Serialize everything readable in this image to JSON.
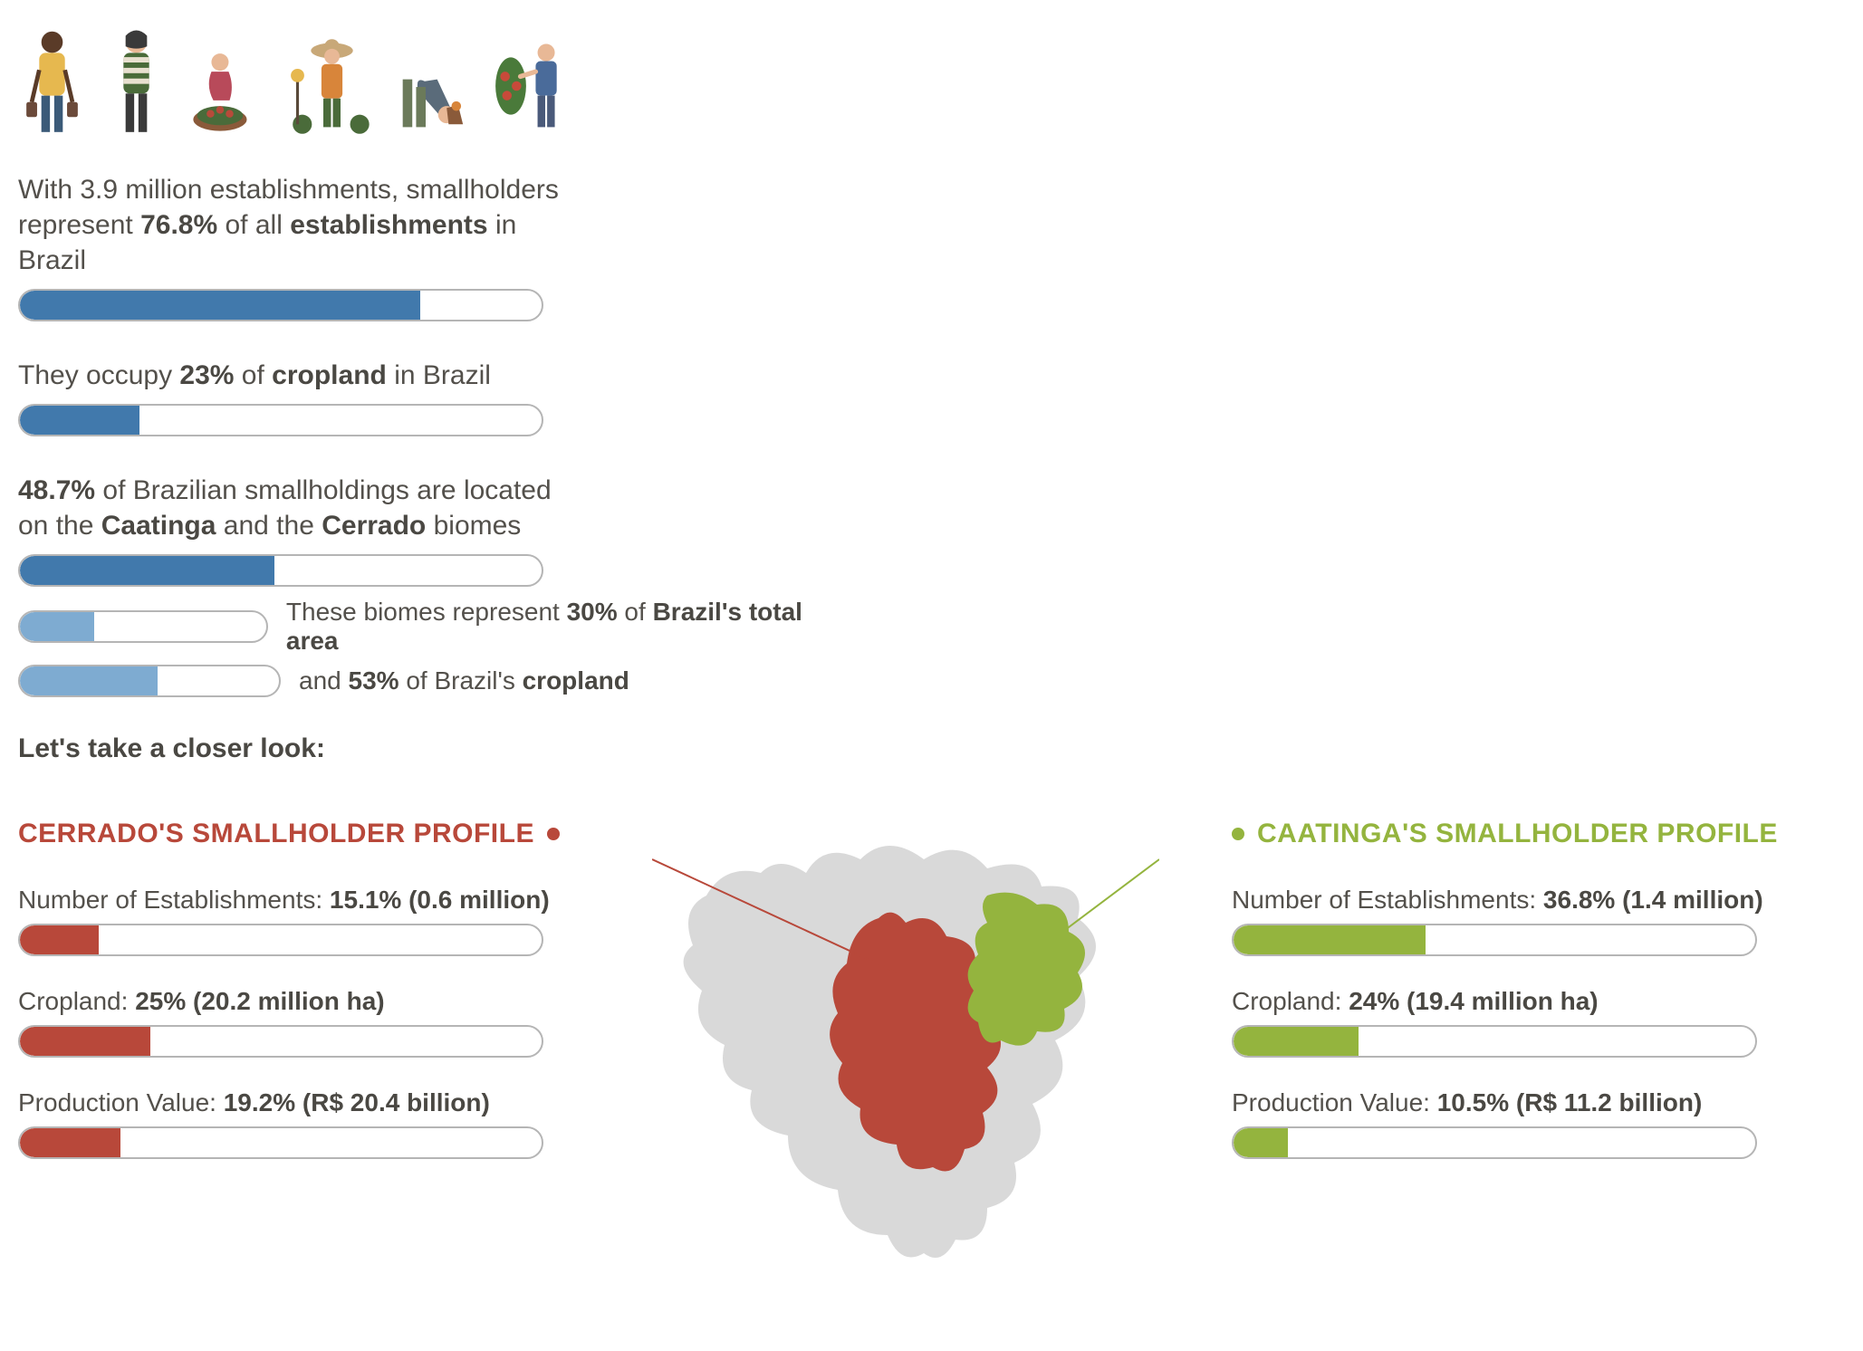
{
  "colors": {
    "blue_dark": "#4179ac",
    "blue_light": "#7eabd1",
    "bar_border": "#b5b5b5",
    "text": "#53504b",
    "text_bold": "#4a4843",
    "red": "#b8483a",
    "green": "#94b43e",
    "map_base": "#d9d9d9"
  },
  "stats": {
    "establishments": {
      "pre": "With 3.9 million establishments, smallholders",
      "line2_pre": "represent ",
      "pct_bold": "76.8%",
      "line2_mid": " of all ",
      "word_bold": "establishments",
      "line2_post": " in Brazil",
      "value": 76.8
    },
    "cropland": {
      "pre": "They occupy ",
      "pct_bold": "23%",
      "mid": " of ",
      "word_bold": "cropland",
      "post": " in Brazil",
      "value": 23
    },
    "biomes": {
      "pct_bold": "48.7%",
      "line1_post": " of Brazilian smallholdings are located",
      "line2_pre": "on the ",
      "b1": "Caatinga",
      "line2_mid": " and the ",
      "b2": "Cerrado",
      "line2_post": " biomes",
      "value": 48.7,
      "sub1": {
        "pre": "These biomes represent ",
        "pct": "30%",
        "mid": " of ",
        "bold": "Brazil's total area",
        "value": 30,
        "scale": 50
      },
      "sub2": {
        "pre": "and ",
        "pct": "53%",
        "mid": " of Brazil's ",
        "bold": "cropland",
        "value": 53,
        "scale": 50
      }
    }
  },
  "closer_look": "Let's take a closer look:",
  "cerrado": {
    "title": "CERRADO'S SMALLHOLDER PROFILE",
    "establishments": {
      "label": "Number of Establishments: ",
      "bold": "15.1% (0.6 million)",
      "value": 15.1
    },
    "cropland": {
      "label": "Cropland: ",
      "bold": "25% (20.2 million ha)",
      "value": 25
    },
    "production": {
      "label": "Production Value: ",
      "bold": "19.2% (R$ 20.4 billion)",
      "value": 19.2
    }
  },
  "caatinga": {
    "title": "CAATINGA'S SMALLHOLDER PROFILE",
    "establishments": {
      "label": "Number of Establishments: ",
      "bold": "36.8% (1.4 million)",
      "value": 36.8
    },
    "cropland": {
      "label": "Cropland: ",
      "bold": "24% (19.4 million ha)",
      "value": 24
    },
    "production": {
      "label": "Production Value: ",
      "bold": "10.5% (R$ 11.2 billion)",
      "value": 10.5
    }
  }
}
